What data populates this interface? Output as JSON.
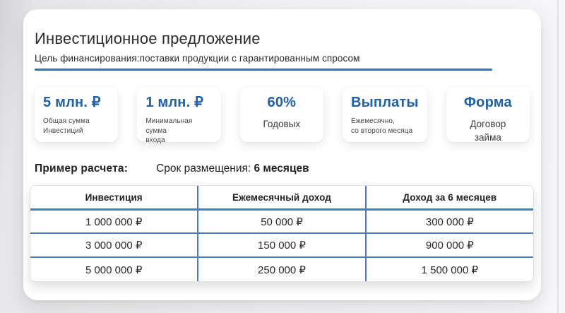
{
  "slide": {
    "title": "Инвестиционное предложение",
    "subtitle": "Цель финансирования:поставки продукции с гарантированным спросом"
  },
  "cards": [
    {
      "heading": "5 млн. ₽",
      "caption_lines": [
        "Общая сумма",
        "Инвестиций"
      ]
    },
    {
      "heading": "1 млн. ₽",
      "caption_lines": [
        "Минимальная сумма",
        "входа"
      ]
    },
    {
      "heading": "60%",
      "caption_lines": [
        "Годовых"
      ]
    },
    {
      "heading": "Выплаты",
      "caption_lines": [
        "Ежемесячно,",
        "со второго месяца"
      ]
    },
    {
      "heading": "Форма",
      "caption_lines": [
        "Договор",
        "займа"
      ]
    }
  ],
  "example": {
    "label": "Пример расчета:",
    "term_label": "Срок размещения:",
    "term_value": "6 месяцев"
  },
  "table": {
    "headers": [
      "Инвестиция",
      "Ежемесячный доход",
      "Доход за 6 месяцев"
    ],
    "rows": [
      [
        "1 000 000 ₽",
        "50 000 ₽",
        "300 000 ₽"
      ],
      [
        "3 000 000 ₽",
        "150 000 ₽",
        "900 000 ₽"
      ],
      [
        "5 000 000 ₽",
        "250 000 ₽",
        "1 500 000 ₽"
      ]
    ]
  },
  "colors": {
    "accent_blue": "#2160a7",
    "table_line_blue": "#4a7db5",
    "underline_blue": "#3571ad"
  }
}
